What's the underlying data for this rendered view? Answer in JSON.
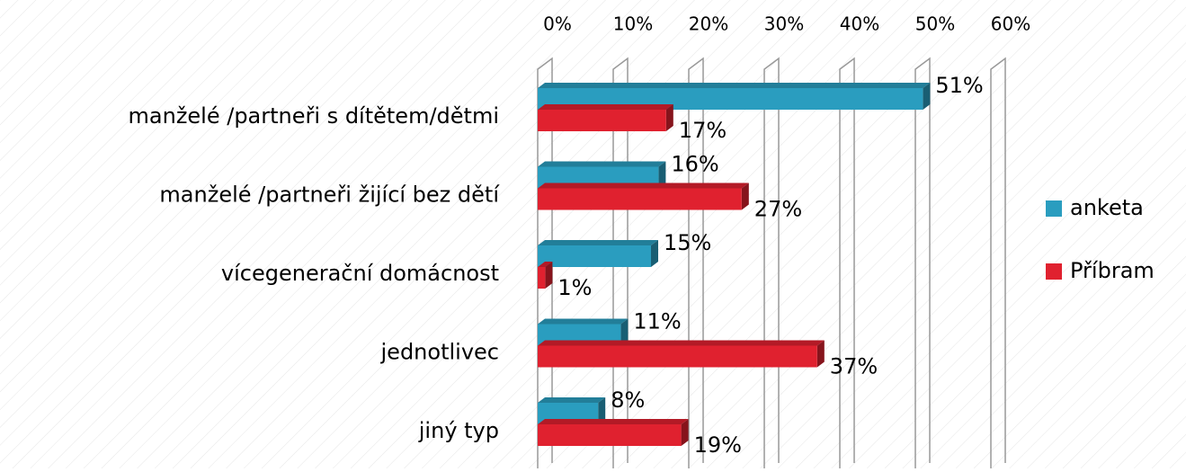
{
  "chart_data": {
    "type": "bar",
    "orientation": "horizontal",
    "categories": [
      "manželé /partneři s dítětem/dětmi",
      "manželé /partneři žijící bez dětí",
      "vícegenerační domácnost",
      "jednotlivec",
      "jiný typ"
    ],
    "series": [
      {
        "name": "anketa",
        "color": "#2a9dbf",
        "values": [
          51,
          16,
          15,
          11,
          8
        ],
        "value_labels": [
          "51%",
          "16%",
          "15%",
          "11%",
          "8%"
        ]
      },
      {
        "name": "Příbram",
        "color": "#e0212f",
        "values": [
          17,
          27,
          1,
          37,
          19
        ],
        "value_labels": [
          "17%",
          "27%",
          "1%",
          "37%",
          "19%"
        ]
      }
    ],
    "xlim": [
      0,
      60
    ],
    "xticks": [
      {
        "value": 0,
        "label": "0%"
      },
      {
        "value": 10,
        "label": "10%"
      },
      {
        "value": 20,
        "label": "20%"
      },
      {
        "value": 30,
        "label": "30%"
      },
      {
        "value": 40,
        "label": "40%"
      },
      {
        "value": 50,
        "label": "50%"
      },
      {
        "value": 60,
        "label": "60%"
      }
    ],
    "grid": true,
    "legend": "right"
  }
}
